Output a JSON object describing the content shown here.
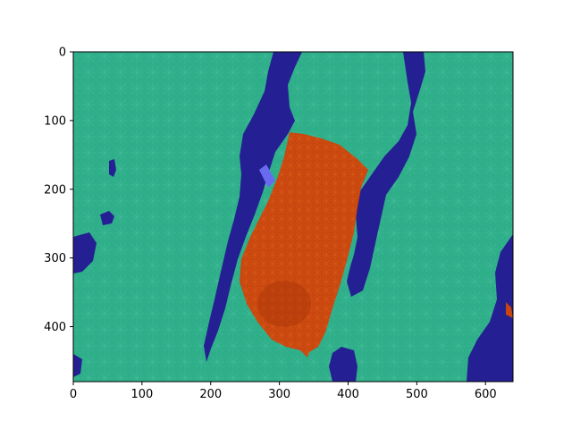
{
  "figure": {
    "type": "image-with-segmentation-overlay",
    "background": "#ffffff"
  },
  "axes": {
    "xlim": [
      0,
      640
    ],
    "ylim_inverted": [
      480,
      0
    ],
    "x_ticks": [
      {
        "value": 0,
        "label": "0"
      },
      {
        "value": 100,
        "label": "100"
      },
      {
        "value": 200,
        "label": "200"
      },
      {
        "value": 300,
        "label": "300"
      },
      {
        "value": 400,
        "label": "400"
      },
      {
        "value": 500,
        "label": "500"
      },
      {
        "value": 600,
        "label": "600"
      }
    ],
    "y_ticks": [
      {
        "value": 0,
        "label": "0"
      },
      {
        "value": 100,
        "label": "100"
      },
      {
        "value": 200,
        "label": "200"
      },
      {
        "value": 300,
        "label": "300"
      },
      {
        "value": 400,
        "label": "400"
      }
    ]
  },
  "overlay": {
    "colors": {
      "vegetation": "#2fae8a",
      "vegetation_dark": "#23906f",
      "path": "#241f92",
      "object": "#c9460f",
      "object_dark": "#a83508",
      "patch": "#6a6af0"
    }
  }
}
